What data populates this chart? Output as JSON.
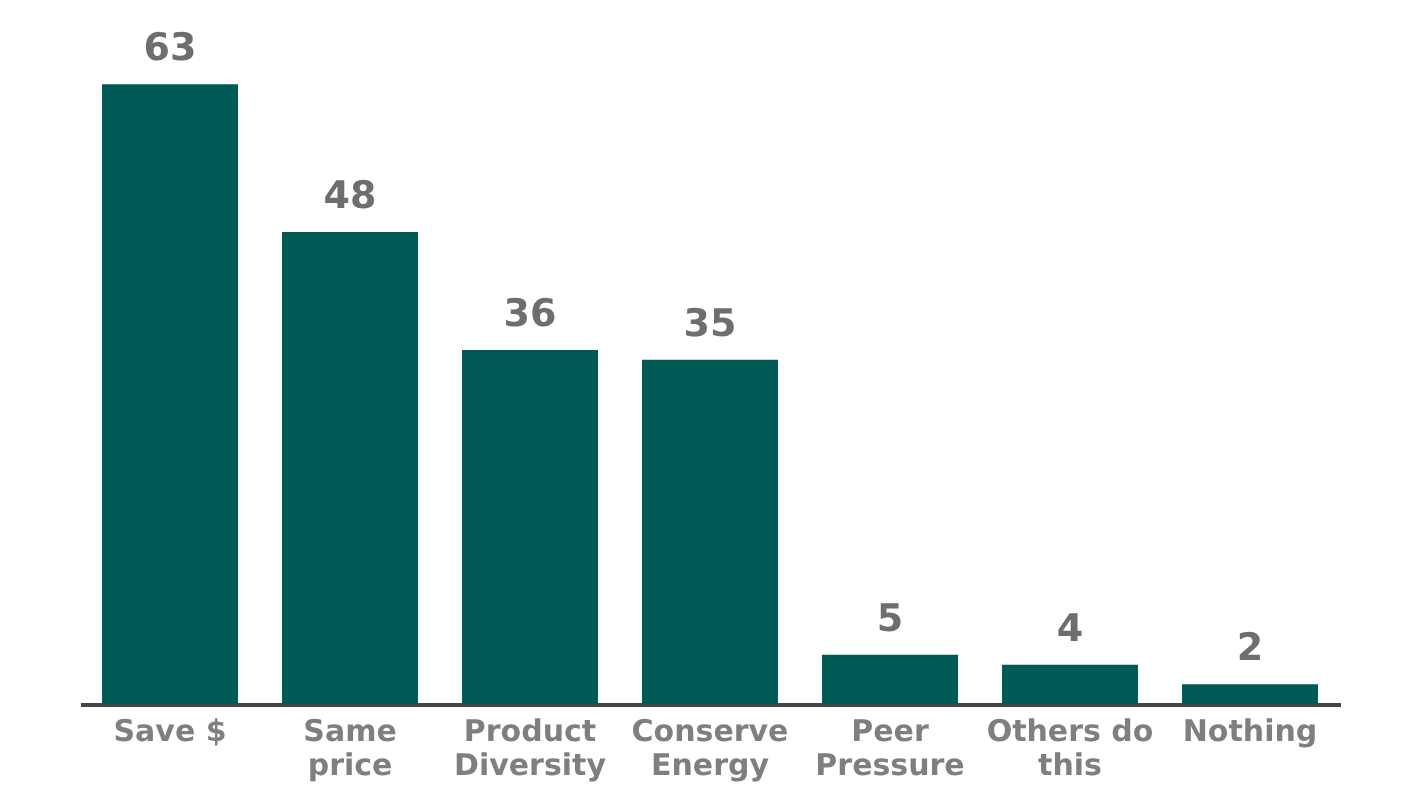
{
  "chart_data": {
    "type": "bar",
    "categories": [
      "Save $",
      "Same price",
      "Product Diversity",
      "Conserve Energy",
      "Peer Pressure",
      "Others do this",
      "Nothing"
    ],
    "values": [
      63,
      48,
      36,
      35,
      5,
      4,
      2
    ],
    "color": "#005a55",
    "data_labels": true
  }
}
